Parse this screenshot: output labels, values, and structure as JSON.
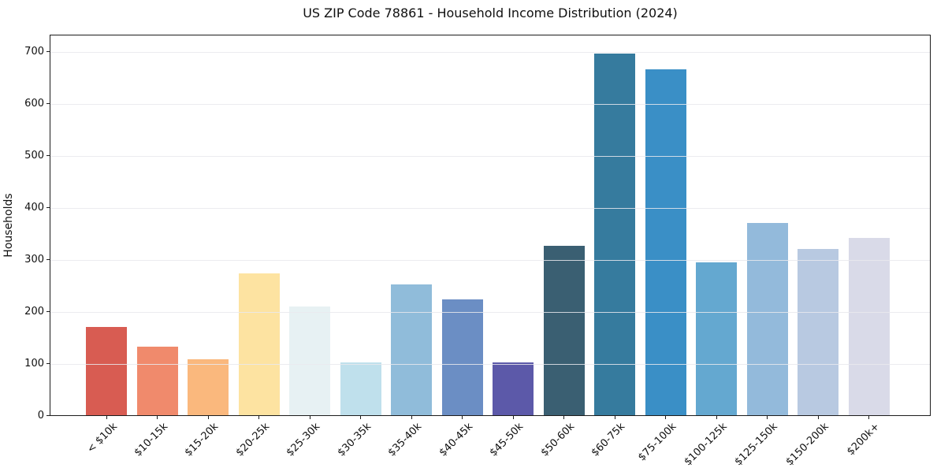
{
  "chart_data": {
    "type": "bar",
    "title": "US ZIP Code 78861 - Household Income Distribution (2024)",
    "xlabel": "",
    "ylabel": "Households",
    "ylim": [
      0,
      734
    ],
    "yticks": [
      0,
      100,
      200,
      300,
      400,
      500,
      600,
      700
    ],
    "grid": "horizontal",
    "legend": "none",
    "categories": [
      "< $10k",
      "$10-15k",
      "$15-20k",
      "$20-25k",
      "$25-30k",
      "$30-35k",
      "$35-40k",
      "$40-45k",
      "$45-50k",
      "$50-60k",
      "$60-75k",
      "$75-100k",
      "$100-125k",
      "$125-150k",
      "$150-200k",
      "$200k+"
    ],
    "values": [
      170,
      132,
      107,
      273,
      210,
      101,
      251,
      223,
      101,
      326,
      696,
      665,
      294,
      370,
      320,
      341
    ],
    "bar_colors": [
      "#d85c52",
      "#f08a6c",
      "#fab87d",
      "#fde3a1",
      "#e7f1f3",
      "#bfe0ec",
      "#90bcda",
      "#6b8ec4",
      "#5c59a9",
      "#3a5f72",
      "#367b9e",
      "#3a8fc6",
      "#64a8d0",
      "#93badb",
      "#b8c9e1",
      "#d9dae8"
    ]
  }
}
